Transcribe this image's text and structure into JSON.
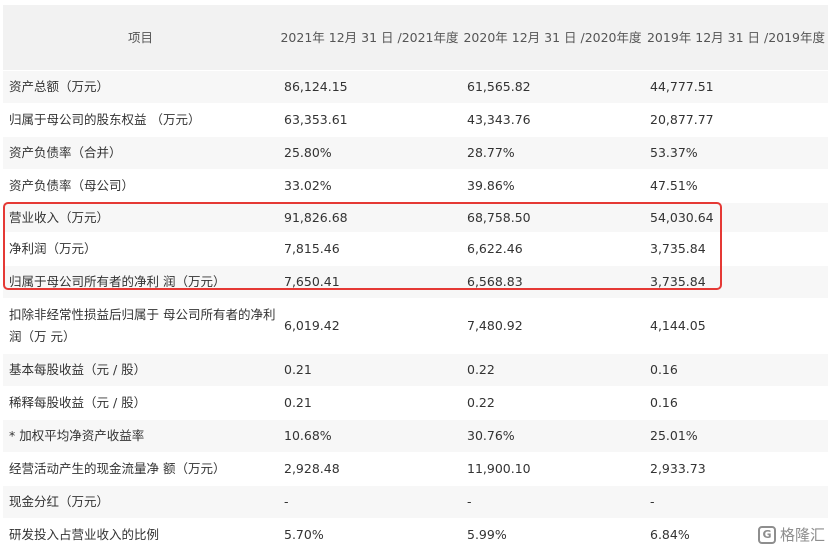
{
  "table": {
    "headers": [
      "项目",
      "2021年 12月 31 日 /2021年度",
      "2020年 12月 31 日 /2020年度",
      "2019年 12月 31 日 /2019年度"
    ],
    "rows": [
      [
        "资产总额（万元）",
        "86,124.15",
        "61,565.82",
        "44,777.51"
      ],
      [
        "归属于母公司的股东权益 （万元）",
        "63,353.61",
        "43,343.76",
        "20,877.77"
      ],
      [
        "资产负债率（合并）",
        "25.80%",
        "28.77%",
        "53.37%"
      ],
      [
        "资产负债率（母公司）",
        "33.02%",
        "39.86%",
        "47.51%"
      ],
      [
        "营业收入（万元）",
        "91,826.68",
        "68,758.50",
        "54,030.64"
      ],
      [
        "净利润（万元）",
        "7,815.46",
        "6,622.46",
        "3,735.84"
      ],
      [
        "归属于母公司所有者的净利 润（万元）",
        "7,650.41",
        "6,568.83",
        "3,735.84"
      ],
      [
        "扣除非经常性损益后归属于 母公司所有者的净利润（万 元）",
        "6,019.42",
        "7,480.92",
        "4,144.05"
      ],
      [
        "基本每股收益（元 / 股）",
        "0.21",
        "0.22",
        "0.16"
      ],
      [
        "稀释每股收益（元 / 股）",
        "0.21",
        "0.22",
        "0.16"
      ],
      [
        "* 加权平均净资产收益率",
        "10.68%",
        "30.76%",
        "25.01%"
      ],
      [
        "经营活动产生的现金流量净 额（万元）",
        "2,928.48",
        "11,900.10",
        "2,933.73"
      ],
      [
        "现金分红（万元）",
        "-",
        "-",
        "-"
      ],
      [
        "研发投入占营业收入的比例",
        "5.70%",
        "5.99%",
        "6.84%"
      ]
    ]
  },
  "highlight": {
    "color": "#e53935"
  },
  "watermark": {
    "logo_glyph": "G",
    "text": "格隆汇"
  }
}
